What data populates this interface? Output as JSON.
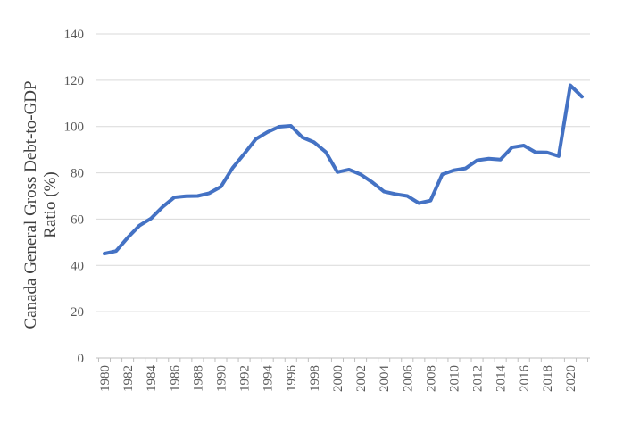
{
  "chart_data": {
    "type": "line",
    "title": "",
    "xlabel": "",
    "ylabel": "Canada General Gross Debt-to-GDP Ratio (%)",
    "ylabel_lines": [
      "Canada General Gross Debt-to-GDP",
      "Ratio (%)"
    ],
    "ylim": [
      0,
      140
    ],
    "yticks": [
      0,
      20,
      40,
      60,
      80,
      100,
      120,
      140
    ],
    "xticks": [
      1980,
      1982,
      1984,
      1986,
      1988,
      1990,
      1992,
      1994,
      1996,
      1998,
      2000,
      2002,
      2004,
      2006,
      2008,
      2010,
      2012,
      2014,
      2016,
      2018,
      2020
    ],
    "x": [
      1980,
      1981,
      1982,
      1983,
      1984,
      1985,
      1986,
      1987,
      1988,
      1989,
      1990,
      1991,
      1992,
      1993,
      1994,
      1995,
      1996,
      1997,
      1998,
      1999,
      2000,
      2001,
      2002,
      2003,
      2004,
      2005,
      2006,
      2007,
      2008,
      2009,
      2010,
      2011,
      2012,
      2013,
      2014,
      2015,
      2016,
      2017,
      2018,
      2019,
      2020,
      2021
    ],
    "series": [
      {
        "color": "#4472c4",
        "values": [
          45.1,
          46.2,
          52.0,
          57.2,
          60.3,
          65.3,
          69.4,
          69.9,
          70.0,
          71.2,
          74.0,
          82.1,
          88.2,
          94.6,
          97.6,
          99.9,
          100.3,
          95.3,
          93.2,
          89.0,
          80.3,
          81.4,
          79.3,
          75.9,
          71.9,
          70.8,
          70.0,
          66.9,
          68.0,
          79.3,
          81.1,
          81.9,
          85.4,
          86.1,
          85.7,
          91.0,
          91.8,
          88.9,
          88.8,
          87.2,
          117.8,
          112.9
        ]
      }
    ],
    "grid": true,
    "legend": "none"
  }
}
